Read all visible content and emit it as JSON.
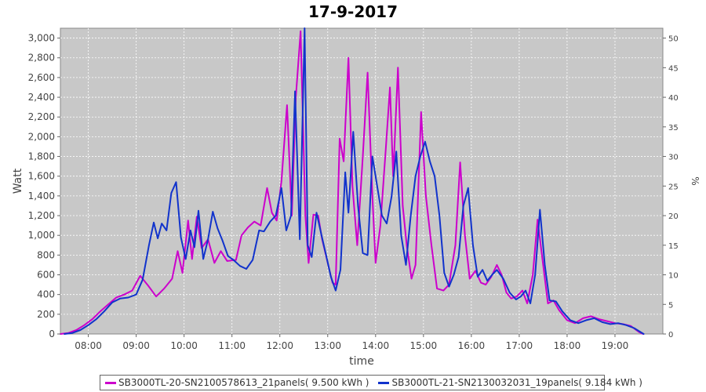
{
  "chart_data": {
    "type": "line",
    "title": "17-9-2017",
    "xlabel": "time",
    "ylabel": "Watt",
    "y2label": "%",
    "xlim": [
      "07:25",
      "20:00"
    ],
    "ylim": [
      0,
      3100
    ],
    "y2lim": [
      0,
      51.67
    ],
    "x_ticks": [
      "08:00",
      "09:00",
      "10:00",
      "11:00",
      "12:00",
      "13:00",
      "14:00",
      "15:00",
      "16:00",
      "17:00",
      "18:00",
      "19:00"
    ],
    "y_ticks": [
      "0",
      "200",
      "400",
      "600",
      "800",
      "1,000",
      "1,200",
      "1,400",
      "1,600",
      "1,800",
      "2,000",
      "2,200",
      "2,400",
      "2,600",
      "2,800",
      "3,000"
    ],
    "y2_ticks": [
      "0",
      "5",
      "10",
      "15",
      "20",
      "25",
      "30",
      "35",
      "40",
      "45",
      "50"
    ],
    "grid": true,
    "legend_position": "bottom",
    "background": "#c8c8c8",
    "series": [
      {
        "name": "SB3000TL-20-SN2100578613_21panels( 9.500 kWh )",
        "color": "#cc00cc",
        "points": [
          [
            "07:25",
            0
          ],
          [
            "07:35",
            10
          ],
          [
            "07:45",
            40
          ],
          [
            "07:55",
            90
          ],
          [
            "08:05",
            150
          ],
          [
            "08:15",
            230
          ],
          [
            "08:25",
            300
          ],
          [
            "08:35",
            370
          ],
          [
            "08:45",
            400
          ],
          [
            "08:55",
            440
          ],
          [
            "09:05",
            590
          ],
          [
            "09:15",
            490
          ],
          [
            "09:25",
            380
          ],
          [
            "09:35",
            460
          ],
          [
            "09:45",
            560
          ],
          [
            "09:52",
            840
          ],
          [
            "09:58",
            620
          ],
          [
            "10:05",
            1150
          ],
          [
            "10:10",
            760
          ],
          [
            "10:16",
            1190
          ],
          [
            "10:22",
            870
          ],
          [
            "10:30",
            960
          ],
          [
            "10:38",
            720
          ],
          [
            "10:46",
            840
          ],
          [
            "10:54",
            740
          ],
          [
            "11:05",
            750
          ],
          [
            "11:12",
            1000
          ],
          [
            "11:20",
            1080
          ],
          [
            "11:28",
            1140
          ],
          [
            "11:36",
            1100
          ],
          [
            "11:44",
            1480
          ],
          [
            "11:50",
            1230
          ],
          [
            "11:56",
            1150
          ],
          [
            "12:02",
            1550
          ],
          [
            "12:09",
            2320
          ],
          [
            "12:15",
            1200
          ],
          [
            "12:20",
            2400
          ],
          [
            "12:26",
            3070
          ],
          [
            "12:32",
            1200
          ],
          [
            "12:36",
            720
          ],
          [
            "12:42",
            1210
          ],
          [
            "12:48",
            1200
          ],
          [
            "12:53",
            960
          ],
          [
            "13:00",
            720
          ],
          [
            "13:06",
            520
          ],
          [
            "13:10",
            500
          ],
          [
            "13:15",
            1980
          ],
          [
            "13:20",
            1750
          ],
          [
            "13:26",
            2800
          ],
          [
            "13:31",
            1500
          ],
          [
            "13:37",
            900
          ],
          [
            "13:44",
            1800
          ],
          [
            "13:50",
            2650
          ],
          [
            "13:56",
            1400
          ],
          [
            "14:00",
            720
          ],
          [
            "14:06",
            1100
          ],
          [
            "14:13",
            1900
          ],
          [
            "14:18",
            2500
          ],
          [
            "14:22",
            1600
          ],
          [
            "14:28",
            2700
          ],
          [
            "14:34",
            1300
          ],
          [
            "14:39",
            900
          ],
          [
            "14:45",
            560
          ],
          [
            "14:50",
            700
          ],
          [
            "14:57",
            2250
          ],
          [
            "15:03",
            1400
          ],
          [
            "15:10",
            900
          ],
          [
            "15:17",
            460
          ],
          [
            "15:25",
            440
          ],
          [
            "15:32",
            500
          ],
          [
            "15:40",
            900
          ],
          [
            "15:46",
            1740
          ],
          [
            "15:52",
            1000
          ],
          [
            "15:58",
            560
          ],
          [
            "16:05",
            640
          ],
          [
            "16:12",
            520
          ],
          [
            "16:18",
            500
          ],
          [
            "16:25",
            580
          ],
          [
            "16:32",
            700
          ],
          [
            "16:38",
            600
          ],
          [
            "16:44",
            420
          ],
          [
            "16:50",
            360
          ],
          [
            "16:57",
            380
          ],
          [
            "17:04",
            440
          ],
          [
            "17:10",
            310
          ],
          [
            "17:17",
            600
          ],
          [
            "17:23",
            1160
          ],
          [
            "17:30",
            700
          ],
          [
            "17:36",
            310
          ],
          [
            "17:43",
            340
          ],
          [
            "17:50",
            240
          ],
          [
            "18:00",
            140
          ],
          [
            "18:10",
            110
          ],
          [
            "18:20",
            160
          ],
          [
            "18:30",
            180
          ],
          [
            "18:40",
            150
          ],
          [
            "18:50",
            130
          ],
          [
            "19:00",
            110
          ],
          [
            "19:10",
            100
          ],
          [
            "19:20",
            80
          ],
          [
            "19:30",
            20
          ],
          [
            "19:35",
            0
          ]
        ]
      },
      {
        "name": "SB3000TL-21-SN2130032031_19panels( 9.184 kWh )",
        "color": "#1133cc",
        "points": [
          [
            "07:30",
            0
          ],
          [
            "07:40",
            10
          ],
          [
            "07:50",
            40
          ],
          [
            "08:00",
            90
          ],
          [
            "08:10",
            150
          ],
          [
            "08:20",
            230
          ],
          [
            "08:30",
            320
          ],
          [
            "08:40",
            360
          ],
          [
            "08:50",
            370
          ],
          [
            "09:00",
            400
          ],
          [
            "09:08",
            550
          ],
          [
            "09:16",
            900
          ],
          [
            "09:22",
            1130
          ],
          [
            "09:27",
            970
          ],
          [
            "09:32",
            1120
          ],
          [
            "09:38",
            1050
          ],
          [
            "09:44",
            1430
          ],
          [
            "09:50",
            1540
          ],
          [
            "09:56",
            980
          ],
          [
            "10:02",
            760
          ],
          [
            "10:08",
            1050
          ],
          [
            "10:13",
            880
          ],
          [
            "10:18",
            1250
          ],
          [
            "10:24",
            760
          ],
          [
            "10:30",
            960
          ],
          [
            "10:36",
            1240
          ],
          [
            "10:42",
            1070
          ],
          [
            "10:48",
            950
          ],
          [
            "10:55",
            790
          ],
          [
            "11:02",
            750
          ],
          [
            "11:10",
            690
          ],
          [
            "11:18",
            660
          ],
          [
            "11:26",
            750
          ],
          [
            "11:34",
            1050
          ],
          [
            "11:40",
            1040
          ],
          [
            "11:48",
            1140
          ],
          [
            "11:55",
            1200
          ],
          [
            "12:02",
            1480
          ],
          [
            "12:08",
            1050
          ],
          [
            "12:14",
            1200
          ],
          [
            "12:19",
            2460
          ],
          [
            "12:25",
            960
          ],
          [
            "12:31",
            3100
          ],
          [
            "12:35",
            900
          ],
          [
            "12:40",
            780
          ],
          [
            "12:46",
            1230
          ],
          [
            "12:52",
            1010
          ],
          [
            "12:58",
            800
          ],
          [
            "13:04",
            580
          ],
          [
            "13:10",
            440
          ],
          [
            "13:16",
            650
          ],
          [
            "13:22",
            1640
          ],
          [
            "13:26",
            1230
          ],
          [
            "13:32",
            2050
          ],
          [
            "13:38",
            1300
          ],
          [
            "13:44",
            820
          ],
          [
            "13:50",
            800
          ],
          [
            "13:56",
            1800
          ],
          [
            "14:02",
            1500
          ],
          [
            "14:08",
            1200
          ],
          [
            "14:14",
            1120
          ],
          [
            "14:20",
            1390
          ],
          [
            "14:26",
            1850
          ],
          [
            "14:32",
            1000
          ],
          [
            "14:38",
            700
          ],
          [
            "14:44",
            1200
          ],
          [
            "14:50",
            1600
          ],
          [
            "14:56",
            1800
          ],
          [
            "15:02",
            1950
          ],
          [
            "15:08",
            1750
          ],
          [
            "15:14",
            1600
          ],
          [
            "15:20",
            1200
          ],
          [
            "15:26",
            620
          ],
          [
            "15:32",
            480
          ],
          [
            "15:38",
            600
          ],
          [
            "15:44",
            780
          ],
          [
            "15:50",
            1300
          ],
          [
            "15:56",
            1480
          ],
          [
            "16:02",
            900
          ],
          [
            "16:08",
            580
          ],
          [
            "16:14",
            650
          ],
          [
            "16:20",
            540
          ],
          [
            "16:26",
            600
          ],
          [
            "16:32",
            650
          ],
          [
            "16:40",
            560
          ],
          [
            "16:48",
            420
          ],
          [
            "16:56",
            350
          ],
          [
            "17:02",
            380
          ],
          [
            "17:08",
            440
          ],
          [
            "17:14",
            310
          ],
          [
            "17:20",
            600
          ],
          [
            "17:26",
            1260
          ],
          [
            "17:32",
            700
          ],
          [
            "17:38",
            340
          ],
          [
            "17:46",
            330
          ],
          [
            "17:54",
            230
          ],
          [
            "18:04",
            140
          ],
          [
            "18:14",
            110
          ],
          [
            "18:24",
            140
          ],
          [
            "18:34",
            160
          ],
          [
            "18:44",
            120
          ],
          [
            "18:54",
            100
          ],
          [
            "19:04",
            110
          ],
          [
            "19:14",
            90
          ],
          [
            "19:24",
            60
          ],
          [
            "19:32",
            20
          ],
          [
            "19:36",
            0
          ]
        ]
      }
    ]
  }
}
